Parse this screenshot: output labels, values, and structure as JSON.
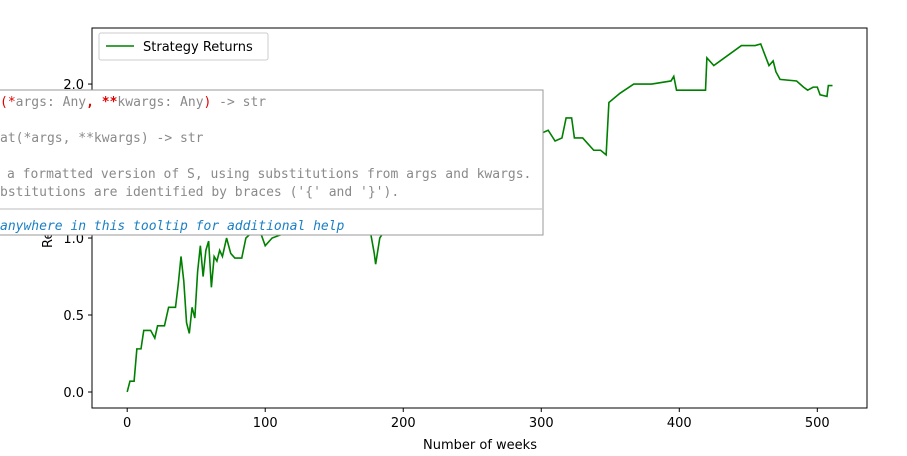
{
  "chart_data": {
    "type": "line",
    "xlabel": "Number of weeks",
    "ylabel": "Re",
    "x": [
      0,
      2,
      5,
      7,
      10,
      12,
      17,
      20,
      22,
      27,
      30,
      35,
      37,
      39,
      41,
      43,
      45,
      47,
      49,
      51,
      53,
      55,
      57,
      59,
      61,
      63,
      65,
      67,
      69,
      72,
      75,
      78,
      83,
      86,
      92,
      96,
      100,
      105,
      120,
      140,
      160,
      175,
      179,
      180,
      183,
      190,
      220,
      260,
      290,
      296,
      300,
      305,
      310,
      315,
      318,
      322,
      324,
      330,
      333,
      338,
      343,
      347,
      349,
      357,
      367,
      380,
      394,
      396,
      398,
      419,
      420,
      425,
      445,
      455,
      459,
      462,
      465,
      468,
      470,
      473,
      485,
      490,
      493,
      497,
      500,
      502,
      507,
      508,
      511
    ],
    "series": [
      {
        "name": "Strategy Returns",
        "color": "#008000",
        "values": [
          0,
          0.07,
          0.07,
          0.28,
          0.28,
          0.4,
          0.4,
          0.35,
          0.43,
          0.43,
          0.55,
          0.55,
          0.7,
          0.88,
          0.72,
          0.45,
          0.38,
          0.55,
          0.48,
          0.78,
          0.95,
          0.75,
          0.92,
          0.98,
          0.68,
          0.88,
          0.85,
          0.92,
          0.88,
          1.0,
          0.9,
          0.87,
          0.87,
          1.0,
          1.05,
          1.05,
          0.95,
          1.0,
          1.05,
          1.15,
          1.2,
          1.1,
          0.9,
          0.83,
          1.0,
          1.1,
          1.3,
          1.4,
          1.45,
          1.6,
          1.68,
          1.7,
          1.63,
          1.65,
          1.78,
          1.78,
          1.65,
          1.65,
          1.62,
          1.57,
          1.57,
          1.54,
          1.88,
          1.94,
          2.0,
          2.0,
          2.02,
          2.05,
          1.96,
          1.96,
          2.17,
          2.12,
          2.25,
          2.25,
          2.26,
          2.19,
          2.12,
          2.15,
          2.08,
          2.03,
          2.02,
          1.98,
          1.96,
          1.98,
          1.98,
          1.93,
          1.92,
          1.99,
          1.99
        ]
      }
    ],
    "xlim": [
      -25.5,
      536
    ],
    "ylim": [
      -0.104,
      2.364
    ],
    "xticks": [
      0,
      100,
      200,
      300,
      400,
      500
    ],
    "yticks": [
      {
        "value": 0,
        "label": "0.0"
      },
      {
        "value": 0.5,
        "label": "0.5"
      },
      {
        "value": 1,
        "label": "1.0"
      },
      {
        "value": 2,
        "label": "2.0"
      }
    ],
    "legend": "upper left"
  },
  "tooltip": {
    "signature": [
      "(*",
      "args: Any",
      ", **",
      "kwargs: Any",
      ")",
      " -> str"
    ],
    "lines": [
      "at(*args, **kwargs) -> str",
      "a formatted version of S, using substitutions from args and kwargs.",
      "bstitutions are identified by braces ('{' and '}')."
    ],
    "help": "anywhere in this tooltip for additional help"
  }
}
